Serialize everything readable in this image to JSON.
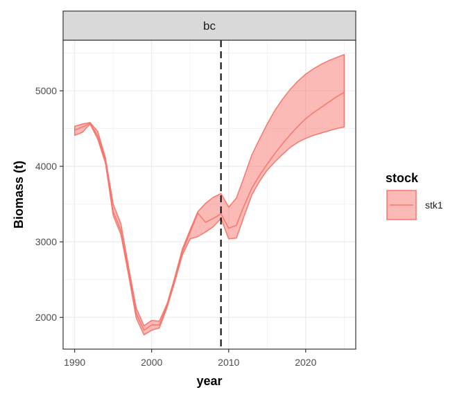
{
  "chart_data": {
    "type": "area",
    "facet_label": "bc",
    "xlabel": "year",
    "ylabel": "Biomass (t)",
    "xlim": [
      1988.5,
      2026.5
    ],
    "ylim": [
      1580,
      5670
    ],
    "x_ticks": [
      1990,
      2000,
      2010,
      2020
    ],
    "y_ticks": [
      2000,
      3000,
      4000,
      5000
    ],
    "grid": true,
    "legend": {
      "title": "stock",
      "position": "right",
      "entries": [
        "stk1"
      ]
    },
    "vline": {
      "x": 2009,
      "style": "dashed"
    },
    "series": [
      {
        "name": "stk1",
        "color": "#F8766D",
        "fill": "#F8766D",
        "x": [
          1990,
          1991,
          1992,
          1993,
          1994,
          1995,
          1996,
          1997,
          1998,
          1999,
          2000,
          2001,
          2002,
          2003,
          2004,
          2005,
          2006,
          2007,
          2008,
          2009,
          2010,
          2011,
          2012,
          2013,
          2014,
          2015,
          2016,
          2017,
          2018,
          2019,
          2020,
          2021,
          2022,
          2023,
          2024,
          2025
        ],
        "median": [
          4480,
          4520,
          4570,
          4400,
          4080,
          3400,
          3150,
          2600,
          2050,
          1830,
          1900,
          1900,
          2150,
          2500,
          2870,
          3130,
          3380,
          3260,
          3310,
          3370,
          3180,
          3220,
          3480,
          3710,
          3880,
          4030,
          4170,
          4300,
          4420,
          4530,
          4630,
          4710,
          4780,
          4850,
          4920,
          4980
        ],
        "lower": [
          4410,
          4450,
          4560,
          4360,
          4040,
          3350,
          3100,
          2560,
          1990,
          1770,
          1830,
          1860,
          2130,
          2470,
          2830,
          3040,
          3070,
          3130,
          3200,
          3310,
          3040,
          3050,
          3340,
          3620,
          3800,
          3950,
          4060,
          4160,
          4250,
          4320,
          4370,
          4410,
          4440,
          4470,
          4500,
          4520
        ],
        "upper": [
          4530,
          4560,
          4580,
          4460,
          4110,
          3500,
          3240,
          2670,
          2120,
          1890,
          1960,
          1950,
          2180,
          2530,
          2910,
          3160,
          3400,
          3510,
          3590,
          3640,
          3460,
          3580,
          3860,
          4150,
          4360,
          4560,
          4740,
          4890,
          5020,
          5130,
          5220,
          5290,
          5350,
          5400,
          5440,
          5480
        ]
      }
    ]
  }
}
